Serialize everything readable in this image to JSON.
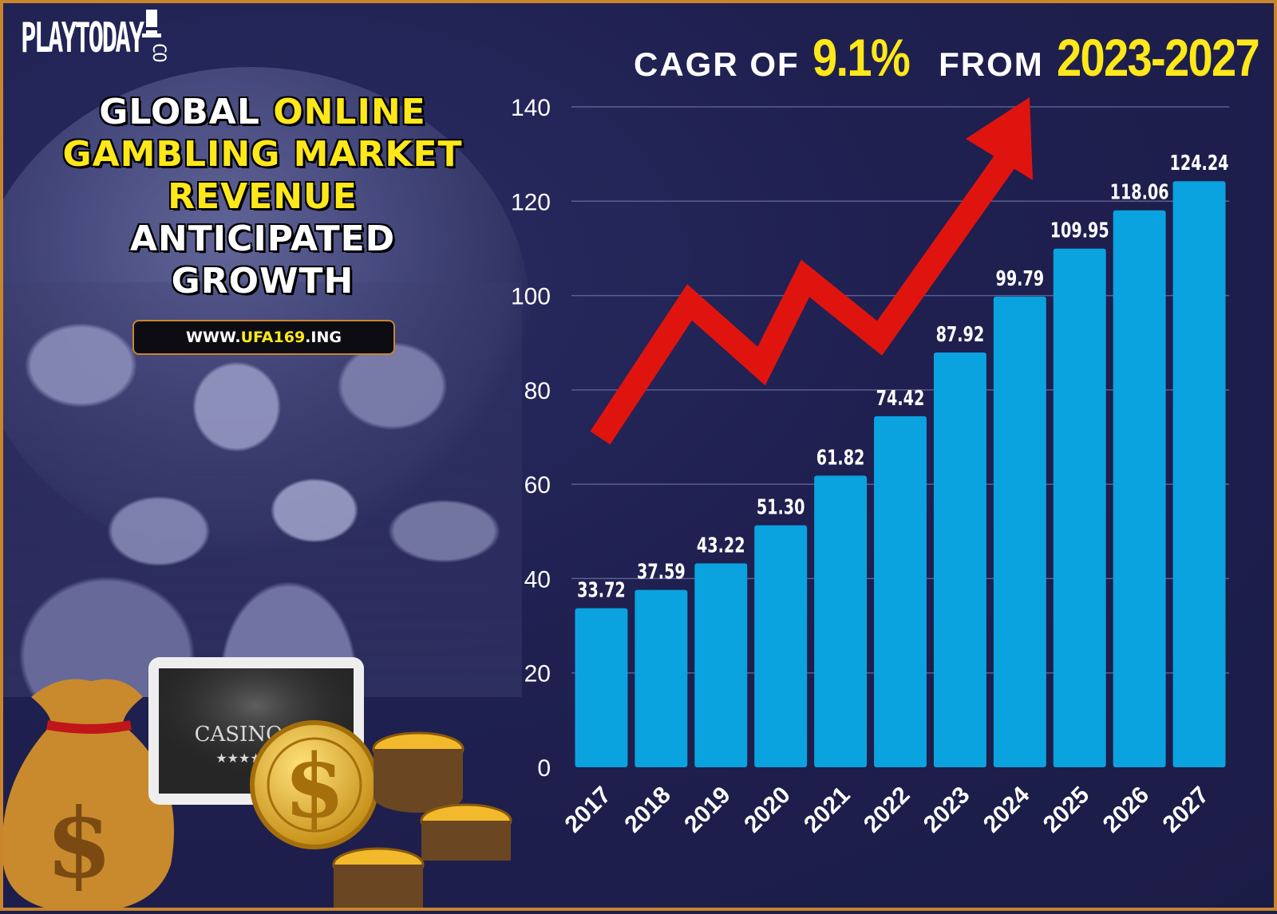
{
  "brand": {
    "logo_text": "PLAYTODAY",
    "logo_suffix": "CO"
  },
  "headline": {
    "line1_white": "GLOBAL ",
    "line1_yellow": "ONLINE",
    "line2_yellow": "GAMBLING MARKET",
    "line3_yellow": "REVENUE",
    "line4_white": "ANTICIPATED",
    "line5_white": "GROWTH"
  },
  "url": {
    "prefix": "WWW.",
    "highlight": "UFA169",
    "suffix": ".ING"
  },
  "cagr": {
    "label1": "CAGR OF",
    "rate": "9.1%",
    "label2": "FROM",
    "period": "2023-2027"
  },
  "art": {
    "tablet_text": "CASINO",
    "tablet_stars": "★★★★"
  },
  "colors": {
    "background": "#1f2050",
    "bar": "#0aa3df",
    "arrow": "#e0140f",
    "accent": "#ffe81a",
    "border": "#c9852c"
  },
  "chart_data": {
    "type": "bar",
    "categories": [
      "2017",
      "2018",
      "2019",
      "2020",
      "2021",
      "2022",
      "2023",
      "2024",
      "2025",
      "2026",
      "2027"
    ],
    "values": [
      33.72,
      37.59,
      43.22,
      51.3,
      61.82,
      74.42,
      87.92,
      99.79,
      109.95,
      118.06,
      124.24
    ],
    "value_labels": [
      "33.72",
      "37.59",
      "43.22",
      "51.30",
      "61.82",
      "74.42",
      "87.92",
      "99.79",
      "109.95",
      "118.06",
      "124.24"
    ],
    "y_ticks": [
      "0",
      "20",
      "40",
      "60",
      "80",
      "100",
      "120",
      "140"
    ],
    "ylim": [
      0,
      140
    ],
    "grid": true,
    "title": "",
    "xlabel": "",
    "ylabel": ""
  }
}
